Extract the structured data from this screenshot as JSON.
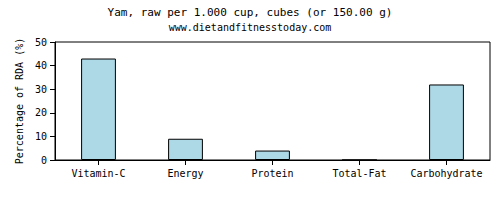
{
  "chart_data": {
    "type": "bar",
    "title": "Yam, raw per 1.000 cup, cubes (or 150.00 g)",
    "subtitle": "www.dietandfitnesstoday.com",
    "y_label": "Percentage of RDA (%)",
    "categories": [
      "Vitamin-C",
      "Energy",
      "Protein",
      "Total-Fat",
      "Carbohydrate"
    ],
    "values": [
      43,
      9,
      4,
      0,
      32
    ],
    "color": "#add8e6",
    "ylim": [
      0,
      50
    ],
    "yticks": [
      0,
      10,
      20,
      30,
      40,
      50
    ],
    "grid": false
  }
}
